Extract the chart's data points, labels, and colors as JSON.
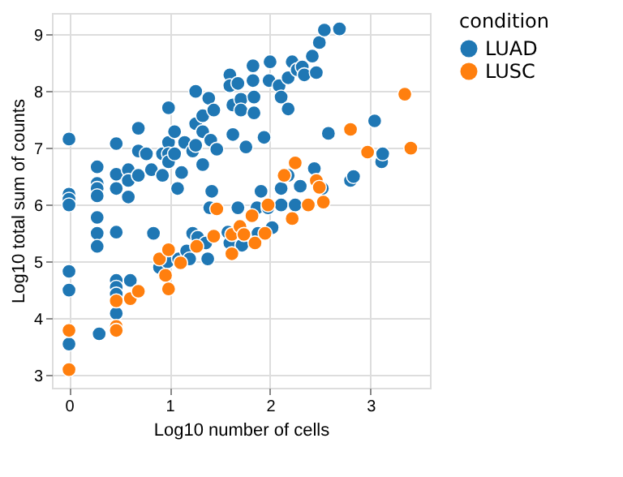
{
  "chart_data": {
    "type": "scatter",
    "xlabel": "Log10 number of cells",
    "ylabel": "Log10 total sum of counts",
    "legend_title": "condition",
    "legend": "right",
    "grid": true,
    "marker": "circle",
    "xlim": [
      -0.17,
      3.59
    ],
    "xticks": [
      0,
      1,
      2,
      3
    ],
    "ylim": [
      2.78,
      9.38
    ],
    "yticks": [
      3,
      4,
      5,
      6,
      7,
      8,
      9
    ],
    "series": [
      {
        "name": "LUAD",
        "color": "#1f77b4",
        "x": [
          0,
          0,
          0,
          0,
          0.28,
          0.28,
          0.28,
          0.28,
          0.28,
          0.47,
          0.47,
          0.47,
          0.59,
          0.59,
          0.59,
          0.69,
          0.69,
          0.69,
          0.77,
          0.82,
          0.93,
          0.93,
          0.99,
          0.99,
          0.99,
          0.99,
          1.05,
          1.05,
          1.08,
          1.12,
          1.15,
          1.23,
          1.26,
          1.26,
          1.26,
          1.33,
          1.33,
          1.39,
          1.41,
          1.44,
          1.33,
          1.47,
          1.42,
          1.6,
          1.6,
          1.63,
          1.63,
          1.68,
          1.71,
          1.71,
          1.76,
          1.83,
          1.83,
          1.84,
          1.84,
          1.94,
          2.0,
          1.99,
          2.09,
          2.11,
          2.18,
          2.18,
          2.22,
          2.27,
          2.32,
          2.34,
          2.42,
          2.46,
          2.49,
          2.54,
          2.69,
          2.58,
          2.44,
          2.3,
          2.52,
          2.11,
          2.18,
          2.8,
          2.83,
          3.04,
          3.11,
          3.12,
          1.91,
          1.68,
          1.87,
          1.98,
          2.11,
          2.25,
          0,
          0,
          0,
          0.28,
          0.28,
          0.47,
          0.47,
          0.47,
          0.47,
          0.61,
          0.47,
          0.3,
          0.84,
          0.9,
          0.98,
          1.09,
          1.17,
          1.2,
          1.23,
          1.28,
          1.36,
          1.38,
          1.4,
          1.58,
          1.6,
          1.72,
          1.88,
          2.02
        ],
        "values": [
          7.16,
          6.19,
          6.1,
          6.0,
          6.67,
          6.38,
          6.29,
          6.16,
          5.78,
          7.08,
          6.54,
          6.29,
          6.62,
          6.43,
          6.14,
          7.35,
          6.95,
          6.52,
          6.9,
          6.62,
          6.9,
          6.52,
          7.71,
          7.1,
          6.9,
          6.76,
          7.29,
          6.9,
          6.29,
          6.57,
          7.1,
          6.95,
          8.0,
          7.43,
          7.05,
          7.57,
          7.29,
          7.88,
          7.14,
          7.67,
          6.71,
          6.98,
          6.24,
          8.29,
          8.1,
          7.76,
          7.24,
          8.14,
          7.86,
          7.67,
          7.02,
          8.45,
          8.19,
          7.9,
          7.62,
          7.19,
          8.52,
          8.19,
          8.1,
          7.9,
          8.24,
          7.69,
          8.52,
          8.38,
          8.43,
          8.29,
          8.62,
          8.33,
          8.86,
          9.08,
          9.1,
          7.26,
          6.64,
          6.33,
          6.29,
          6.29,
          6.52,
          6.43,
          6.5,
          7.48,
          6.76,
          6.9,
          6.24,
          5.95,
          5.95,
          5.95,
          6.0,
          6.0,
          4.83,
          4.5,
          3.55,
          5.5,
          5.27,
          5.52,
          4.67,
          4.55,
          4.43,
          4.67,
          4.09,
          3.73,
          5.5,
          4.9,
          5.0,
          5.05,
          5.19,
          5.05,
          5.5,
          5.43,
          5.33,
          5.05,
          5.95,
          5.52,
          5.33,
          5.29,
          5.5,
          5.6
        ]
      },
      {
        "name": "LUSC",
        "color": "#ff7f0e",
        "x": [
          3.34,
          3.4,
          2.8,
          2.97,
          2.14,
          2.25,
          2.46,
          2.49,
          2.53,
          2.38,
          2.22,
          1.98,
          1.82,
          1.47,
          0,
          0,
          0.47,
          0.47,
          0.47,
          0.61,
          0.69,
          0.9,
          0.96,
          0.99,
          0.99,
          1.11,
          1.27,
          1.44,
          1.62,
          1.62,
          1.7,
          1.74,
          1.85,
          1.95
        ],
        "values": [
          7.95,
          7.0,
          7.33,
          6.93,
          6.52,
          6.74,
          6.43,
          6.31,
          6.05,
          6.0,
          5.76,
          6.0,
          5.81,
          5.93,
          3.79,
          3.1,
          3.86,
          3.79,
          4.31,
          4.35,
          4.48,
          5.05,
          4.76,
          4.52,
          5.21,
          4.98,
          5.27,
          5.45,
          5.14,
          5.48,
          5.62,
          5.48,
          5.33,
          5.5
        ]
      }
    ]
  }
}
